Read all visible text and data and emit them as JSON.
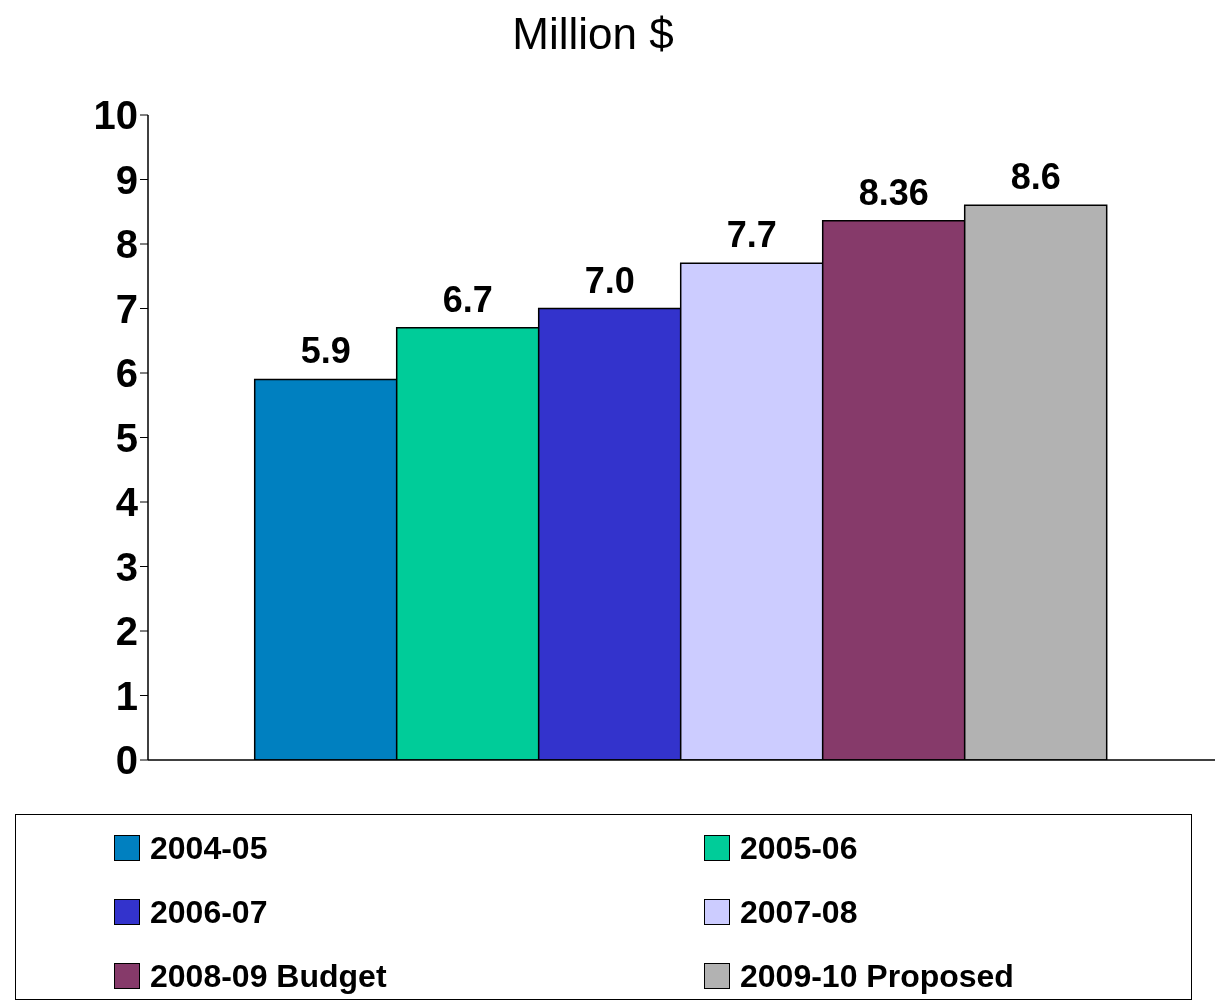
{
  "chart_data": {
    "type": "bar",
    "title": "Million $",
    "categories": [
      null
    ],
    "series": [
      {
        "name": "2004-05",
        "color": "#0080c0",
        "values": [
          5.9
        ],
        "value_labels": [
          "5.9"
        ]
      },
      {
        "name": "2005-06",
        "color": "#00cc99",
        "values": [
          6.7
        ],
        "value_labels": [
          "6.7"
        ]
      },
      {
        "name": "2006-07",
        "color": "#3333cc",
        "values": [
          7.0
        ],
        "value_labels": [
          "7.0"
        ]
      },
      {
        "name": "2007-08",
        "color": "#ccccff",
        "values": [
          7.7
        ],
        "value_labels": [
          "7.7"
        ]
      },
      {
        "name": "2008-09 Budget",
        "color": "#863a6a",
        "values": [
          8.36
        ],
        "value_labels": [
          "8.36"
        ]
      },
      {
        "name": "2009-10 Proposed",
        "color": "#b2b2b2",
        "values": [
          8.6
        ],
        "value_labels": [
          "8.6"
        ]
      }
    ],
    "ylim": [
      0,
      10
    ],
    "yticks": [
      0,
      1,
      2,
      3,
      4,
      5,
      6,
      7,
      8,
      9,
      10
    ],
    "grid": false,
    "legend": "bottom"
  }
}
